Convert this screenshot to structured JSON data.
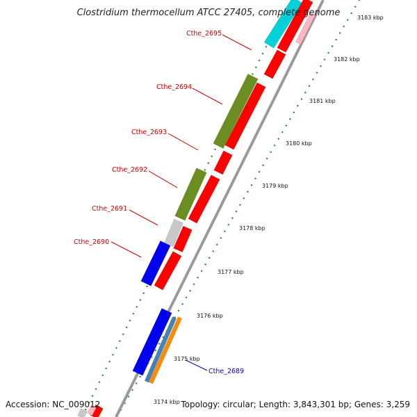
{
  "title": "Clostridium thermocellum ATCC 27405, complete genome",
  "footer": {
    "accession": "Accession: NC_009012",
    "summary": "Topology: circular; Length: 3,843,301 bp; Genes: 3,259"
  },
  "ticks": [
    {
      "label": "3183 kbp"
    },
    {
      "label": "3182 kbp"
    },
    {
      "label": "3181 kbp"
    },
    {
      "label": "3180 kbp"
    },
    {
      "label": "3179 kbp"
    },
    {
      "label": "3178 kbp"
    },
    {
      "label": "3177 kbp"
    },
    {
      "label": "3176 kbp"
    },
    {
      "label": "3175 kbp"
    },
    {
      "label": "3174 kbp"
    }
  ],
  "gene_labels": [
    {
      "text": "Cthe_2695",
      "color": "#cc0000"
    },
    {
      "text": "Cthe_2694",
      "color": "#cc0000"
    },
    {
      "text": "Cthe_2693",
      "color": "#cc0000"
    },
    {
      "text": "Cthe_2692",
      "color": "#cc0000"
    },
    {
      "text": "Cthe_2691",
      "color": "#cc0000"
    },
    {
      "text": "Cthe_2690",
      "color": "#cc0000"
    },
    {
      "text": "Cthe_2689",
      "color": "#0000cc"
    }
  ],
  "colors": {
    "red": "#ff0000",
    "olive": "#6b8e23",
    "blue": "#0000ee",
    "cyan": "#00d0d8",
    "grey": "#c8c8c8",
    "steel": "#4682b4",
    "orange": "#ff8c00",
    "pink": "#ffb6c1",
    "backbone": "#999999",
    "dots": "#228b22"
  }
}
